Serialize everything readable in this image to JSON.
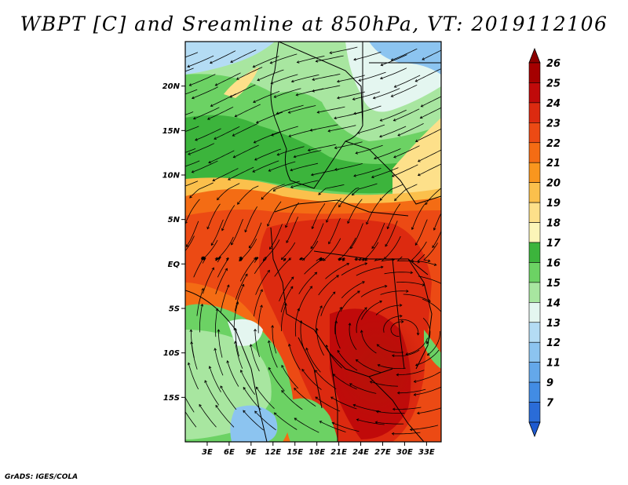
{
  "title": "WBPT [C] and Sreamline at 850hPa, VT: 2019112106",
  "footer": "GrADS: IGES/COLA",
  "map": {
    "lon_range": [
      0,
      35
    ],
    "lat_range": [
      -20,
      25
    ],
    "lat_ticks": [
      {
        "value": 20,
        "label": "20N"
      },
      {
        "value": 15,
        "label": "15N"
      },
      {
        "value": 10,
        "label": "10N"
      },
      {
        "value": 5,
        "label": "5N"
      },
      {
        "value": 0,
        "label": "EQ"
      },
      {
        "value": -5,
        "label": "5S"
      },
      {
        "value": -10,
        "label": "10S"
      },
      {
        "value": -15,
        "label": "15S"
      }
    ],
    "lon_ticks": [
      {
        "value": 3,
        "label": "3E"
      },
      {
        "value": 6,
        "label": "6E"
      },
      {
        "value": 9,
        "label": "9E"
      },
      {
        "value": 12,
        "label": "12E"
      },
      {
        "value": 15,
        "label": "15E"
      },
      {
        "value": 18,
        "label": "18E"
      },
      {
        "value": 21,
        "label": "21E"
      },
      {
        "value": 24,
        "label": "24E"
      },
      {
        "value": 27,
        "label": "27E"
      },
      {
        "value": 30,
        "label": "30E"
      },
      {
        "value": 33,
        "label": "33E"
      }
    ]
  },
  "colorbar": {
    "levels": [
      {
        "label": "26",
        "color": "#a50000"
      },
      {
        "label": "25",
        "color": "#c00a0a"
      },
      {
        "label": "24",
        "color": "#dc2a10"
      },
      {
        "label": "23",
        "color": "#ec4a14"
      },
      {
        "label": "22",
        "color": "#f46c14"
      },
      {
        "label": "21",
        "color": "#f9961e"
      },
      {
        "label": "20",
        "color": "#fbc04c"
      },
      {
        "label": "19",
        "color": "#fde08a"
      },
      {
        "label": "18",
        "color": "#fcf5b8"
      },
      {
        "label": "17",
        "color": "#3cb43c"
      },
      {
        "label": "16",
        "color": "#6cd264"
      },
      {
        "label": "15",
        "color": "#a8e6a0"
      },
      {
        "label": "14",
        "color": "#e4f6f0"
      },
      {
        "label": "13",
        "color": "#b4dcf4"
      },
      {
        "label": "12",
        "color": "#8cc4f0"
      },
      {
        "label": "11",
        "color": "#64a8ea"
      },
      {
        "label": "9",
        "color": "#428ce4"
      },
      {
        "label": "7",
        "color": "#2a6cd8"
      }
    ],
    "low_color": "#1e5ad0",
    "high_color": "#8c0000"
  }
}
